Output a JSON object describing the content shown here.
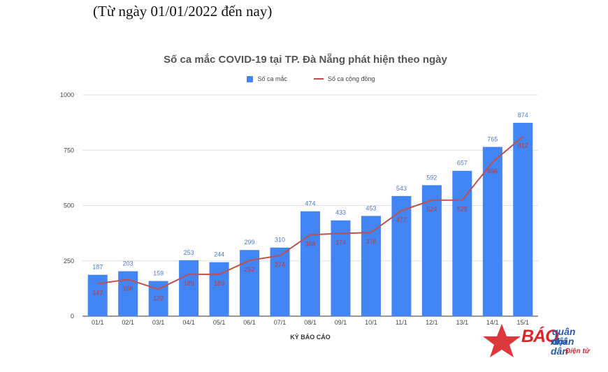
{
  "header": {
    "date_range": "(Từ ngày 01/01/2022 đến nay)"
  },
  "chart_data": {
    "type": "bar",
    "title": "Số ca mắc COVID-19 tại TP. Đà Nẵng phát hiện theo ngày",
    "xlabel": "KỲ BÁO CÁO",
    "ylabel": "",
    "ylim": [
      0,
      1000
    ],
    "yticks": [
      "0",
      "250",
      "500",
      "750",
      "1000"
    ],
    "grid": true,
    "legend_position": "top",
    "categories": [
      "01/1",
      "02/1",
      "03/1",
      "04/1",
      "05/1",
      "06/1",
      "07/1",
      "08/1",
      "09/1",
      "10/1",
      "11/1",
      "12/1",
      "13/1",
      "14/1",
      "15/1"
    ],
    "series": [
      {
        "name": "Số ca mắc",
        "type": "bar",
        "color": "#4285f4",
        "values": [
          187,
          203,
          159,
          253,
          244,
          299,
          310,
          474,
          433,
          453,
          543,
          592,
          657,
          765,
          874
        ]
      },
      {
        "name": "Số ca cộng đồng",
        "type": "line",
        "color": "#c0504d",
        "values": [
          147,
          166,
          122,
          189,
          189,
          252,
          274,
          368,
          374,
          378,
          477,
          524,
          525,
          696,
          812
        ]
      }
    ]
  },
  "logo": {
    "bao": "BÁO",
    "quan_doi": "quân đội",
    "nhan_dan": "nhân dân",
    "dien_tu": "Điện tử",
    "star_color": "#d9262a",
    "text_color": "#2a5aa8"
  }
}
